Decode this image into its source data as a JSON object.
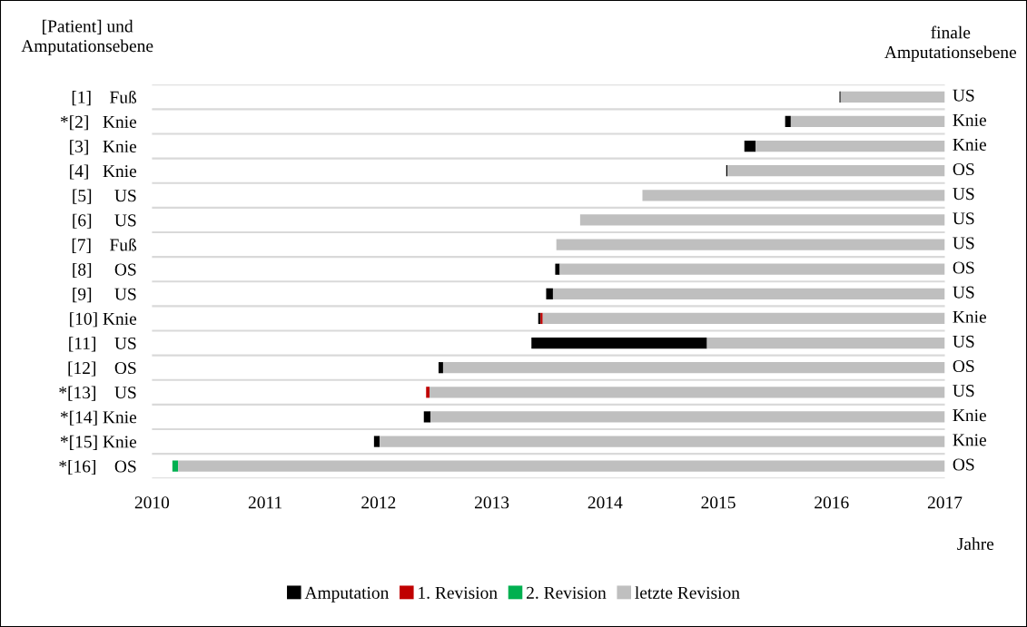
{
  "chart_data": {
    "type": "bar",
    "orientation": "horizontal",
    "ylabel": "[Patient] und\nAmputationsebene",
    "y2label": "finale\nAmputationsebene",
    "xlabel": "Jahre",
    "categories": [
      "[1]    Fuß",
      "*[2]   Knie",
      "[3]   Knie",
      "[4]   Knie",
      "[5]     US",
      "[6]     US",
      "[7]    Fuß",
      "[8]     OS",
      "[9]     US",
      "[10] Knie",
      "[11]    US",
      "[12]    OS",
      "*[13]    US",
      "*[14] Knie",
      "*[15] Knie",
      "*[16]    OS"
    ],
    "series": [
      {
        "name": "Amputation",
        "color": "#000000",
        "values": [
          0.01,
          0.05,
          0.1,
          0.01,
          null,
          null,
          null,
          0.04,
          0.06,
          0.02,
          1.55,
          0.04,
          null,
          0.06,
          0.05,
          null
        ],
        "base": [
          2016.07,
          2015.59,
          2015.23,
          2015.07,
          null,
          null,
          null,
          2013.56,
          2013.48,
          2013.41,
          2013.35,
          2012.53,
          null,
          2012.4,
          2011.96,
          null
        ]
      },
      {
        "name": "1. Revision",
        "color": "#c00000",
        "values": [
          null,
          null,
          null,
          null,
          null,
          null,
          null,
          null,
          null,
          0.02,
          null,
          null,
          0.03,
          null,
          null,
          null
        ],
        "base": [
          null,
          null,
          null,
          null,
          null,
          null,
          null,
          null,
          null,
          2013.43,
          null,
          null,
          2012.42,
          null,
          null,
          null
        ]
      },
      {
        "name": "2. Revision",
        "color": "#00b050",
        "values": [
          null,
          null,
          null,
          null,
          null,
          null,
          null,
          null,
          null,
          null,
          null,
          null,
          null,
          null,
          null,
          0.05
        ],
        "base": [
          null,
          null,
          null,
          null,
          null,
          null,
          null,
          null,
          null,
          null,
          null,
          null,
          null,
          null,
          null,
          2010.18
        ]
      },
      {
        "name": "letzte Revision",
        "color": "#bfbfbf",
        "values": [
          0.92,
          1.36,
          1.67,
          1.92,
          2.67,
          3.22,
          3.43,
          3.4,
          3.46,
          3.55,
          2.1,
          4.43,
          4.55,
          4.54,
          4.99,
          6.77
        ],
        "base": [
          2016.08,
          2015.64,
          2015.33,
          2015.08,
          2014.33,
          2013.78,
          2013.57,
          2013.6,
          2013.54,
          2013.45,
          2014.9,
          2012.57,
          2012.45,
          2012.46,
          2012.01,
          2010.23
        ],
        "value_labels": [
          "US",
          "Knie",
          "Knie",
          "OS",
          "US",
          "US",
          "US",
          "OS",
          "US",
          "Knie",
          "US",
          "OS",
          "US",
          "Knie",
          "Knie",
          "OS"
        ]
      }
    ],
    "xlim": [
      2010,
      2017
    ],
    "xticks": [
      2010,
      2011,
      2012,
      2013,
      2014,
      2015,
      2016,
      2017
    ],
    "grid": "y",
    "legend": "bottom"
  }
}
